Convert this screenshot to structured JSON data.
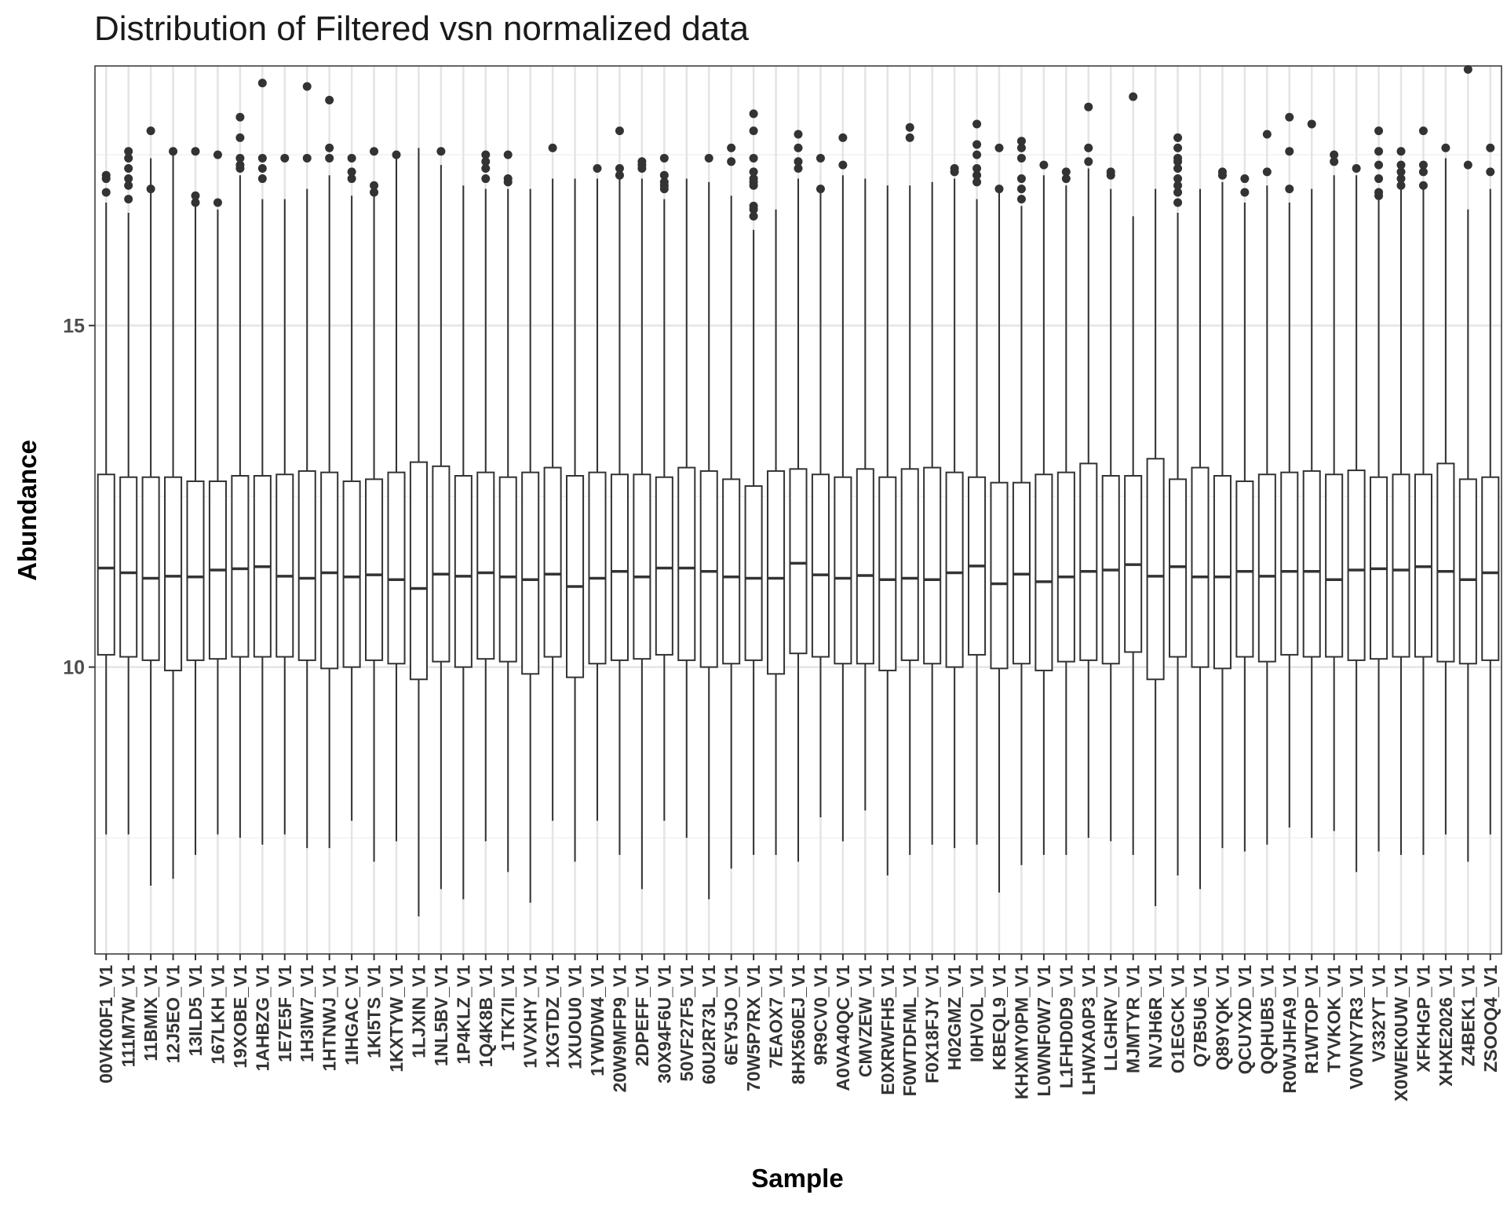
{
  "chart_data": {
    "type": "box",
    "title": "Distribution of Filtered vsn normalized data",
    "xlabel": "Sample",
    "ylabel": "Abundance",
    "ylim": [
      5.8,
      18.8
    ],
    "y_ticks": [
      10,
      15
    ],
    "grid": true,
    "categories": [
      "00VK00F1_V1",
      "111M7W_V1",
      "11BMIX_V1",
      "12J5EO_V1",
      "13ILD5_V1",
      "167LKH_V1",
      "19XOBE_V1",
      "1AHBZG_V1",
      "1E7E5F_V1",
      "1H3IW7_V1",
      "1HTNWJ_V1",
      "1IHGAC_V1",
      "1KI5TS_V1",
      "1KXTYW_V1",
      "1LJXIN_V1",
      "1NL5BV_V1",
      "1P4KLZ_V1",
      "1Q4K8B_V1",
      "1TK7II_V1",
      "1VVXHY_V1",
      "1XGTDZ_V1",
      "1XUOU0_V1",
      "1YWDW4_V1",
      "20W9MFP9_V1",
      "2DPEFF_V1",
      "30X94F6U_V1",
      "50VF27F5_V1",
      "60U2R73L_V1",
      "6EY5JO_V1",
      "70W5P7RX_V1",
      "7EAOX7_V1",
      "8HX560EJ_V1",
      "9R9CV0_V1",
      "A0VA40QC_V1",
      "CMVZEW_V1",
      "E0XRWFH5_V1",
      "F0WTDFML_V1",
      "F0X18FJY_V1",
      "H02GMZ_V1",
      "I0HVOL_V1",
      "KBEQL9_V1",
      "KHXMY0PM_V1",
      "L0WNF0W7_V1",
      "L1FHD0D9_V1",
      "LHWXA0P3_V1",
      "LLGHRV_V1",
      "MJMTYR_V1",
      "NVJH6R_V1",
      "O1EGCK_V1",
      "Q7B5U6_V1",
      "Q89YQK_V1",
      "QCUYXD_V1",
      "QQHUB5_V1",
      "R0WJHFA9_V1",
      "R1WTOP_V1",
      "TYVKOK_V1",
      "V0VNY7R3_V1",
      "V332YT_V1",
      "X0WEK0UW_V1",
      "XFKHGP_V1",
      "XHXE2026_V1",
      "Z4BEK1_V1",
      "ZSOOQ4_V1"
    ],
    "boxes": [
      {
        "q1": 10.18,
        "median": 11.45,
        "q3": 12.82,
        "wlo": 7.55,
        "whi": 16.8,
        "out": [
          16.95,
          17.15,
          17.2
        ]
      },
      {
        "q1": 10.15,
        "median": 11.38,
        "q3": 12.78,
        "wlo": 7.55,
        "whi": 16.65,
        "out": [
          16.85,
          17.05,
          17.15,
          17.3,
          17.45,
          17.55
        ]
      },
      {
        "q1": 10.1,
        "median": 11.3,
        "q3": 12.78,
        "wlo": 6.8,
        "whi": 17.45,
        "out": [
          17.0,
          17.85
        ]
      },
      {
        "q1": 9.95,
        "median": 11.33,
        "q3": 12.78,
        "wlo": 6.9,
        "whi": 17.55,
        "out": [
          17.55
        ]
      },
      {
        "q1": 10.1,
        "median": 11.32,
        "q3": 12.72,
        "wlo": 7.25,
        "whi": 16.75,
        "out": [
          16.8,
          16.9,
          17.55
        ]
      },
      {
        "q1": 10.12,
        "median": 11.42,
        "q3": 12.72,
        "wlo": 7.55,
        "whi": 16.7,
        "out": [
          16.8,
          17.5
        ]
      },
      {
        "q1": 10.15,
        "median": 11.44,
        "q3": 12.8,
        "wlo": 7.5,
        "whi": 17.2,
        "out": [
          17.3,
          17.35,
          17.45,
          17.75,
          18.05
        ]
      },
      {
        "q1": 10.15,
        "median": 11.47,
        "q3": 12.8,
        "wlo": 7.4,
        "whi": 16.85,
        "out": [
          17.15,
          17.3,
          17.45,
          18.55
        ]
      },
      {
        "q1": 10.15,
        "median": 11.33,
        "q3": 12.82,
        "wlo": 7.55,
        "whi": 16.85,
        "out": [
          17.45
        ]
      },
      {
        "q1": 10.1,
        "median": 11.3,
        "q3": 12.87,
        "wlo": 7.35,
        "whi": 17.0,
        "out": [
          17.45,
          18.5
        ]
      },
      {
        "q1": 9.98,
        "median": 11.38,
        "q3": 12.85,
        "wlo": 7.35,
        "whi": 17.2,
        "out": [
          17.45,
          17.6,
          18.3
        ]
      },
      {
        "q1": 10.0,
        "median": 11.32,
        "q3": 12.72,
        "wlo": 7.75,
        "whi": 16.9,
        "out": [
          17.15,
          17.25,
          17.45
        ]
      },
      {
        "q1": 10.1,
        "median": 11.35,
        "q3": 12.75,
        "wlo": 7.15,
        "whi": 17.0,
        "out": [
          16.95,
          17.05,
          17.55
        ]
      },
      {
        "q1": 10.05,
        "median": 11.28,
        "q3": 12.85,
        "wlo": 7.45,
        "whi": 17.45,
        "out": [
          17.5
        ]
      },
      {
        "q1": 9.82,
        "median": 11.15,
        "q3": 13.0,
        "wlo": 6.35,
        "whi": 17.6,
        "out": []
      },
      {
        "q1": 10.08,
        "median": 11.36,
        "q3": 12.94,
        "wlo": 6.75,
        "whi": 17.35,
        "out": [
          17.55
        ]
      },
      {
        "q1": 10.0,
        "median": 11.33,
        "q3": 12.8,
        "wlo": 6.6,
        "whi": 17.05,
        "out": []
      },
      {
        "q1": 10.12,
        "median": 11.38,
        "q3": 12.85,
        "wlo": 7.45,
        "whi": 17.0,
        "out": [
          17.15,
          17.3,
          17.4,
          17.5
        ]
      },
      {
        "q1": 10.08,
        "median": 11.32,
        "q3": 12.78,
        "wlo": 7.0,
        "whi": 17.0,
        "out": [
          17.1,
          17.15,
          17.5
        ]
      },
      {
        "q1": 9.9,
        "median": 11.28,
        "q3": 12.85,
        "wlo": 6.55,
        "whi": 17.0,
        "out": []
      },
      {
        "q1": 10.15,
        "median": 11.36,
        "q3": 12.92,
        "wlo": 7.75,
        "whi": 17.15,
        "out": [
          17.6
        ]
      },
      {
        "q1": 9.85,
        "median": 11.18,
        "q3": 12.8,
        "wlo": 7.15,
        "whi": 17.15,
        "out": []
      },
      {
        "q1": 10.05,
        "median": 11.3,
        "q3": 12.85,
        "wlo": 7.75,
        "whi": 17.15,
        "out": [
          17.3
        ]
      },
      {
        "q1": 10.1,
        "median": 11.4,
        "q3": 12.82,
        "wlo": 7.25,
        "whi": 17.15,
        "out": [
          17.2,
          17.3,
          17.85
        ]
      },
      {
        "q1": 10.12,
        "median": 11.32,
        "q3": 12.82,
        "wlo": 6.75,
        "whi": 17.15,
        "out": [
          17.3,
          17.35,
          17.4
        ]
      },
      {
        "q1": 10.18,
        "median": 11.45,
        "q3": 12.78,
        "wlo": 7.75,
        "whi": 16.85,
        "out": [
          17.0,
          17.05,
          17.1,
          17.2,
          17.45
        ]
      },
      {
        "q1": 10.1,
        "median": 11.45,
        "q3": 12.92,
        "wlo": 7.5,
        "whi": 17.15,
        "out": []
      },
      {
        "q1": 10.0,
        "median": 11.4,
        "q3": 12.87,
        "wlo": 6.6,
        "whi": 17.1,
        "out": [
          17.45
        ]
      },
      {
        "q1": 10.05,
        "median": 11.32,
        "q3": 12.75,
        "wlo": 7.05,
        "whi": 16.9,
        "out": [
          17.4,
          17.6
        ]
      },
      {
        "q1": 10.1,
        "median": 11.3,
        "q3": 12.65,
        "wlo": 7.25,
        "whi": 16.4,
        "out": [
          16.6,
          16.7,
          16.75,
          17.05,
          17.1,
          17.15,
          17.25,
          17.45,
          17.85,
          18.1
        ]
      },
      {
        "q1": 9.9,
        "median": 11.3,
        "q3": 12.87,
        "wlo": 7.25,
        "whi": 16.7,
        "out": []
      },
      {
        "q1": 10.2,
        "median": 11.52,
        "q3": 12.9,
        "wlo": 7.15,
        "whi": 17.15,
        "out": [
          17.3,
          17.4,
          17.6,
          17.8
        ]
      },
      {
        "q1": 10.15,
        "median": 11.35,
        "q3": 12.82,
        "wlo": 7.8,
        "whi": 16.95,
        "out": [
          17.0,
          17.45
        ]
      },
      {
        "q1": 10.05,
        "median": 11.3,
        "q3": 12.78,
        "wlo": 7.45,
        "whi": 17.2,
        "out": [
          17.35,
          17.75
        ]
      },
      {
        "q1": 10.05,
        "median": 11.34,
        "q3": 12.9,
        "wlo": 7.9,
        "whi": 17.15,
        "out": []
      },
      {
        "q1": 9.95,
        "median": 11.28,
        "q3": 12.78,
        "wlo": 6.95,
        "whi": 17.05,
        "out": []
      },
      {
        "q1": 10.1,
        "median": 11.3,
        "q3": 12.9,
        "wlo": 7.25,
        "whi": 17.05,
        "out": [
          17.75,
          17.9
        ]
      },
      {
        "q1": 10.05,
        "median": 11.28,
        "q3": 12.92,
        "wlo": 7.4,
        "whi": 17.1,
        "out": []
      },
      {
        "q1": 10.0,
        "median": 11.38,
        "q3": 12.85,
        "wlo": 7.35,
        "whi": 17.15,
        "out": [
          17.25,
          17.3
        ]
      },
      {
        "q1": 10.18,
        "median": 11.48,
        "q3": 12.78,
        "wlo": 7.4,
        "whi": 16.85,
        "out": [
          17.1,
          17.2,
          17.3,
          17.5,
          17.65,
          17.95
        ]
      },
      {
        "q1": 9.98,
        "median": 11.22,
        "q3": 12.7,
        "wlo": 6.7,
        "whi": 17.0,
        "out": [
          17.0,
          17.6
        ]
      },
      {
        "q1": 10.05,
        "median": 11.36,
        "q3": 12.7,
        "wlo": 7.1,
        "whi": 16.75,
        "out": [
          16.85,
          17.0,
          17.15,
          17.45,
          17.6,
          17.7
        ]
      },
      {
        "q1": 9.95,
        "median": 11.25,
        "q3": 12.82,
        "wlo": 7.25,
        "whi": 17.2,
        "out": [
          17.35
        ]
      },
      {
        "q1": 10.08,
        "median": 11.32,
        "q3": 12.85,
        "wlo": 7.25,
        "whi": 17.05,
        "out": [
          17.15,
          17.25
        ]
      },
      {
        "q1": 10.1,
        "median": 11.4,
        "q3": 12.98,
        "wlo": 7.5,
        "whi": 17.3,
        "out": [
          17.4,
          17.6,
          18.2
        ]
      },
      {
        "q1": 10.05,
        "median": 11.42,
        "q3": 12.8,
        "wlo": 7.45,
        "whi": 17.0,
        "out": [
          17.2,
          17.25
        ]
      },
      {
        "q1": 10.22,
        "median": 11.5,
        "q3": 12.8,
        "wlo": 7.25,
        "whi": 16.6,
        "out": [
          18.35
        ]
      },
      {
        "q1": 9.82,
        "median": 11.33,
        "q3": 13.05,
        "wlo": 6.5,
        "whi": 17.0,
        "out": []
      },
      {
        "q1": 10.15,
        "median": 11.47,
        "q3": 12.75,
        "wlo": 6.95,
        "whi": 16.65,
        "out": [
          16.8,
          16.95,
          17.05,
          17.15,
          17.3,
          17.4,
          17.45,
          17.6,
          17.75
        ]
      },
      {
        "q1": 10.0,
        "median": 11.32,
        "q3": 12.92,
        "wlo": 6.75,
        "whi": 17.0,
        "out": []
      },
      {
        "q1": 9.98,
        "median": 11.32,
        "q3": 12.8,
        "wlo": 7.35,
        "whi": 17.1,
        "out": [
          17.2,
          17.25
        ]
      },
      {
        "q1": 10.15,
        "median": 11.4,
        "q3": 12.72,
        "wlo": 7.3,
        "whi": 16.8,
        "out": [
          16.95,
          17.15
        ]
      },
      {
        "q1": 10.08,
        "median": 11.33,
        "q3": 12.82,
        "wlo": 7.4,
        "whi": 17.05,
        "out": [
          17.25,
          17.8
        ]
      },
      {
        "q1": 10.18,
        "median": 11.4,
        "q3": 12.85,
        "wlo": 7.65,
        "whi": 16.8,
        "out": [
          17.0,
          17.55,
          18.05
        ]
      },
      {
        "q1": 10.15,
        "median": 11.4,
        "q3": 12.87,
        "wlo": 7.5,
        "whi": 17.0,
        "out": [
          17.95
        ]
      },
      {
        "q1": 10.15,
        "median": 11.28,
        "q3": 12.82,
        "wlo": 7.6,
        "whi": 17.2,
        "out": [
          17.4,
          17.5
        ]
      },
      {
        "q1": 10.1,
        "median": 11.42,
        "q3": 12.88,
        "wlo": 7.0,
        "whi": 17.2,
        "out": [
          17.3
        ]
      },
      {
        "q1": 10.12,
        "median": 11.44,
        "q3": 12.78,
        "wlo": 7.3,
        "whi": 16.85,
        "out": [
          16.9,
          16.95,
          17.15,
          17.35,
          17.55,
          17.85
        ]
      },
      {
        "q1": 10.15,
        "median": 11.42,
        "q3": 12.82,
        "wlo": 7.25,
        "whi": 17.0,
        "out": [
          17.05,
          17.15,
          17.25,
          17.35,
          17.55
        ]
      },
      {
        "q1": 10.15,
        "median": 11.47,
        "q3": 12.82,
        "wlo": 7.25,
        "whi": 17.0,
        "out": [
          17.05,
          17.25,
          17.35,
          17.85
        ]
      },
      {
        "q1": 10.08,
        "median": 11.4,
        "q3": 12.98,
        "wlo": 7.55,
        "whi": 17.45,
        "out": [
          17.6
        ]
      },
      {
        "q1": 10.05,
        "median": 11.28,
        "q3": 12.75,
        "wlo": 7.15,
        "whi": 16.7,
        "out": [
          17.35,
          18.75
        ]
      },
      {
        "q1": 10.1,
        "median": 11.38,
        "q3": 12.78,
        "wlo": 7.55,
        "whi": 17.0,
        "out": [
          17.25,
          17.6
        ]
      }
    ]
  }
}
